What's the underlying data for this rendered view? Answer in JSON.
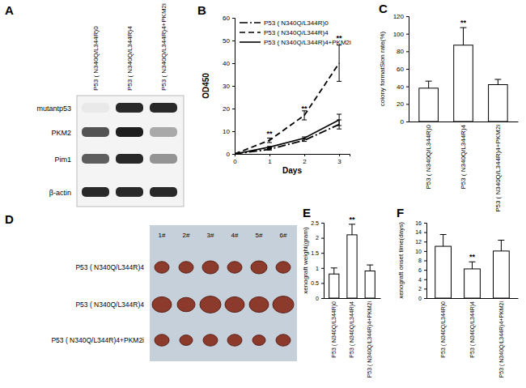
{
  "blot": {
    "title": "A",
    "lanes": [
      "P53 ( N340Q/L344R)0",
      "P53 ( N340Q/L344R)4",
      "P53 ( N340Q/L344R)4+PKM2i"
    ],
    "rows": [
      "mutantp53",
      "PKM2",
      "Pim1",
      "β-actin"
    ]
  },
  "photo": {
    "title": "D",
    "columns": [
      "1#",
      "2#",
      "3#",
      "4#",
      "5#",
      "6#"
    ],
    "rows": [
      "P53 ( N340Q/L344R)4",
      "P53 ( N340Q/L344R)4",
      "P53 ( N340Q/L344R)4+PKM2i"
    ]
  },
  "chart_data": [
    {
      "type": "line",
      "title": "B",
      "x": [
        0,
        1,
        2,
        3
      ],
      "xlim": [
        0,
        3.3
      ],
      "xticks": [
        0,
        1,
        2,
        3
      ],
      "ylim": [
        0,
        60
      ],
      "yticks": [
        0,
        10,
        20,
        30,
        40,
        50,
        60
      ],
      "xlabel": "Days",
      "ylabel": "OD450",
      "legend": "upper left",
      "series": [
        {
          "name": "P53 ( N340Q/L344R)0",
          "color": "#000000",
          "line_style": "dashdot",
          "values": [
            0,
            2,
            6,
            13
          ],
          "errors": [
            0,
            0.3,
            0.5,
            2
          ]
        },
        {
          "name": "P53 ( N340Q/L344R)4",
          "color": "#000000",
          "line_style": "dashed",
          "values": [
            0,
            6,
            17,
            40
          ],
          "errors": [
            0,
            1,
            2,
            8
          ]
        },
        {
          "name": "P53 ( N340Q/L344R)4+PKM2i",
          "color": "#000000",
          "line_style": "solid",
          "values": [
            0,
            3,
            7,
            15
          ],
          "errors": [
            0,
            0.3,
            0.5,
            2.5
          ]
        }
      ],
      "annotations": [
        {
          "text": "**",
          "x": 1,
          "y": 8
        },
        {
          "text": "**",
          "x": 2,
          "y": 19
        },
        {
          "text": "**",
          "x": 3,
          "y": 50
        }
      ]
    },
    {
      "type": "bar",
      "title": "C",
      "categories": [
        "P53 ( N340Q/L344R)0",
        "P53 ( N340Q/L344R)4",
        "P53 ( N340Q/L344R)4+PKM2i"
      ],
      "values": [
        38,
        87,
        42
      ],
      "errors": [
        8,
        20,
        6
      ],
      "color": "#ffffff",
      "ylim": [
        0,
        120
      ],
      "yticks": [
        0,
        20,
        40,
        60,
        80,
        100,
        120
      ],
      "ylabel": "colony formatSion rate(%)",
      "annotations": [
        {
          "text": "**",
          "x": "P53 ( N340Q/L344R)4"
        }
      ]
    },
    {
      "type": "bar",
      "title": "E",
      "categories": [
        "P53 ( N340Q/L344R)0",
        "P53 ( N340Q/L344R)4",
        "P53 ( N340Q/L344R)4+PKM2i"
      ],
      "values": [
        0.8,
        2.1,
        0.9
      ],
      "errors": [
        0.2,
        0.35,
        0.2
      ],
      "color": "#ffffff",
      "ylim": [
        0,
        2.5
      ],
      "yticks": [
        0,
        0.5,
        1,
        1.5,
        2,
        2.5
      ],
      "ylabel": "xenograft weight(gram)",
      "annotations": [
        {
          "text": "**",
          "x": "P53 ( N340Q/L344R)4"
        }
      ]
    },
    {
      "type": "bar",
      "title": "F",
      "categories": [
        "P53 ( N340Q/L344R)0",
        "P53 ( N340Q/L344R)4",
        "P53 ( N340Q/L344R)4+PKM2i"
      ],
      "values": [
        11,
        6.2,
        10
      ],
      "errors": [
        2.5,
        1.5,
        2.3
      ],
      "color": "#ffffff",
      "ylim": [
        0,
        16
      ],
      "yticks": [
        0,
        2,
        4,
        6,
        8,
        10,
        12,
        14,
        16
      ],
      "ylabel": "xenograft onset time(days)",
      "annotations": [
        {
          "text": "**",
          "x": "P53 ( N340Q/L344R)4"
        }
      ]
    }
  ]
}
